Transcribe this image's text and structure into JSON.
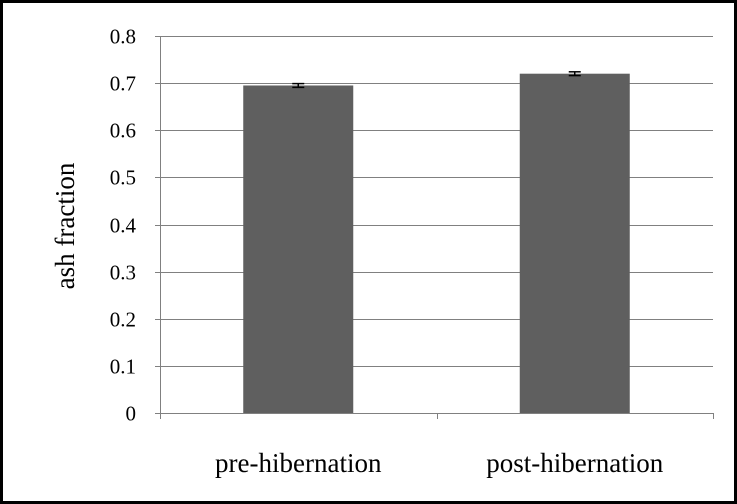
{
  "chart_data": {
    "type": "bar",
    "categories": [
      "pre-hibernation",
      "post-hibernation"
    ],
    "values": [
      0.695,
      0.72
    ],
    "error": [
      0.004,
      0.004
    ],
    "title": "",
    "xlabel": "",
    "ylabel": "ash fraction",
    "ylim": [
      0,
      0.8
    ],
    "yticks": [
      "0",
      "0.1",
      "0.2",
      "0.3",
      "0.4",
      "0.5",
      "0.6",
      "0.7",
      "0.8"
    ],
    "grid": true,
    "colors": {
      "bar": "#5f5f5f",
      "grid": "#808080",
      "axis": "#808080",
      "error": "#000000"
    }
  }
}
